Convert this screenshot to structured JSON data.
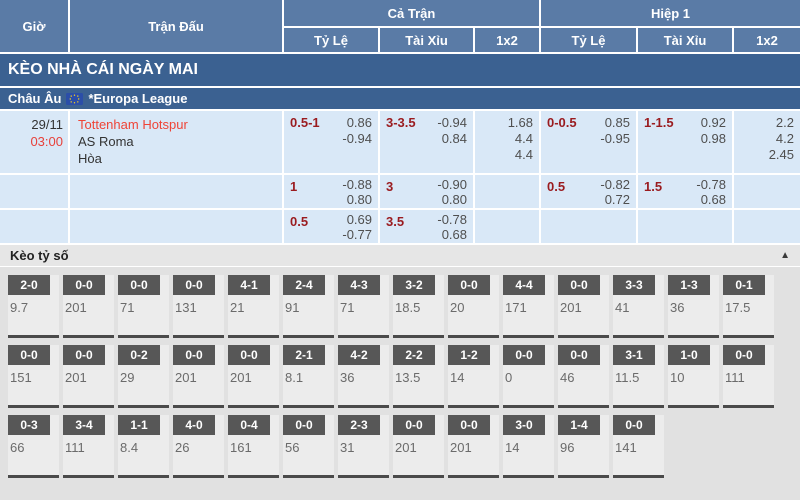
{
  "header": {
    "time": "Giờ",
    "match": "Trận Đấu",
    "full_match": "Cả Trận",
    "first_half": "Hiệp 1",
    "sub_ratio": "Tỷ Lệ",
    "sub_over_under": "Tài Xỉu",
    "sub_1x2": "1x2"
  },
  "banner_title": "KÈO NHÀ CÁI NGÀY MAI",
  "league": {
    "region": "Châu Âu",
    "name": "*Europa League"
  },
  "match": {
    "date": "29/11",
    "time": "03:00",
    "teams": [
      "Tottenham Hotspur",
      "AS Roma",
      "Hòa"
    ],
    "rows": [
      {
        "ft_hcp": {
          "line": "0.5-1",
          "o1": "0.86",
          "o2": "-0.94"
        },
        "ft_ou": {
          "line": "3-3.5",
          "o1": "-0.94",
          "o2": "0.84"
        },
        "ft_1x2": [
          "1.68",
          "4.4",
          "4.4"
        ],
        "h1_hcp": {
          "line": "0-0.5",
          "o1": "0.85",
          "o2": "-0.95"
        },
        "h1_ou": {
          "line": "1-1.5",
          "o1": "0.92",
          "o2": "0.98"
        },
        "h1_1x2": [
          "2.2",
          "4.2",
          "2.45"
        ]
      },
      {
        "ft_hcp": {
          "line": "1",
          "o1": "-0.88",
          "o2": "0.80"
        },
        "ft_ou": {
          "line": "3",
          "o1": "-0.90",
          "o2": "0.80"
        },
        "ft_1x2": [
          "",
          "",
          ""
        ],
        "h1_hcp": {
          "line": "0.5",
          "o1": "-0.82",
          "o2": "0.72"
        },
        "h1_ou": {
          "line": "1.5",
          "o1": "-0.78",
          "o2": "0.68"
        },
        "h1_1x2": [
          "",
          "",
          ""
        ]
      },
      {
        "ft_hcp": {
          "line": "0.5",
          "o1": "0.69",
          "o2": "-0.77"
        },
        "ft_ou": {
          "line": "3.5",
          "o1": "-0.78",
          "o2": "0.68"
        },
        "ft_1x2": [
          "",
          "",
          ""
        ],
        "h1_hcp": {
          "line": "",
          "o1": "",
          "o2": ""
        },
        "h1_ou": {
          "line": "",
          "o1": "",
          "o2": ""
        },
        "h1_1x2": [
          "",
          "",
          ""
        ]
      }
    ]
  },
  "score_section": {
    "title": "Kèo tỷ số",
    "collapse_icon": "▲",
    "rows": [
      [
        {
          "score": "2-0",
          "odds": "9.7"
        },
        {
          "score": "0-0",
          "odds": "201"
        },
        {
          "score": "0-0",
          "odds": "71"
        },
        {
          "score": "0-0",
          "odds": "131"
        },
        {
          "score": "4-1",
          "odds": "21"
        },
        {
          "score": "2-4",
          "odds": "91"
        },
        {
          "score": "4-3",
          "odds": "71"
        },
        {
          "score": "3-2",
          "odds": "18.5"
        },
        {
          "score": "0-0",
          "odds": "20"
        },
        {
          "score": "4-4",
          "odds": "171"
        },
        {
          "score": "0-0",
          "odds": "201"
        },
        {
          "score": "3-3",
          "odds": "41"
        },
        {
          "score": "1-3",
          "odds": "36"
        },
        {
          "score": "0-1",
          "odds": "17.5"
        }
      ],
      [
        {
          "score": "0-0",
          "odds": "151"
        },
        {
          "score": "0-0",
          "odds": "201"
        },
        {
          "score": "0-2",
          "odds": "29"
        },
        {
          "score": "0-0",
          "odds": "201"
        },
        {
          "score": "0-0",
          "odds": "201"
        },
        {
          "score": "2-1",
          "odds": "8.1"
        },
        {
          "score": "4-2",
          "odds": "36"
        },
        {
          "score": "2-2",
          "odds": "13.5"
        },
        {
          "score": "1-2",
          "odds": "14"
        },
        {
          "score": "0-0",
          "odds": "0"
        },
        {
          "score": "0-0",
          "odds": "46"
        },
        {
          "score": "3-1",
          "odds": "11.5"
        },
        {
          "score": "1-0",
          "odds": "10"
        },
        {
          "score": "0-0",
          "odds": "111"
        }
      ],
      [
        {
          "score": "0-3",
          "odds": "66"
        },
        {
          "score": "3-4",
          "odds": "111"
        },
        {
          "score": "1-1",
          "odds": "8.4"
        },
        {
          "score": "4-0",
          "odds": "26"
        },
        {
          "score": "0-4",
          "odds": "161"
        },
        {
          "score": "0-0",
          "odds": "56"
        },
        {
          "score": "2-3",
          "odds": "31"
        },
        {
          "score": "0-0",
          "odds": "201"
        },
        {
          "score": "0-0",
          "odds": "201"
        },
        {
          "score": "3-0",
          "odds": "14"
        },
        {
          "score": "1-4",
          "odds": "96"
        },
        {
          "score": "0-0",
          "odds": "141"
        }
      ]
    ]
  },
  "colors": {
    "header_bg": "#5a7ba6",
    "banner_bg": "#3b6191",
    "row_bg": "#d9e8f7",
    "accent_red": "#e8403a",
    "handicap_maroon": "#9a1b1f",
    "score_badge_bg": "#575757"
  }
}
